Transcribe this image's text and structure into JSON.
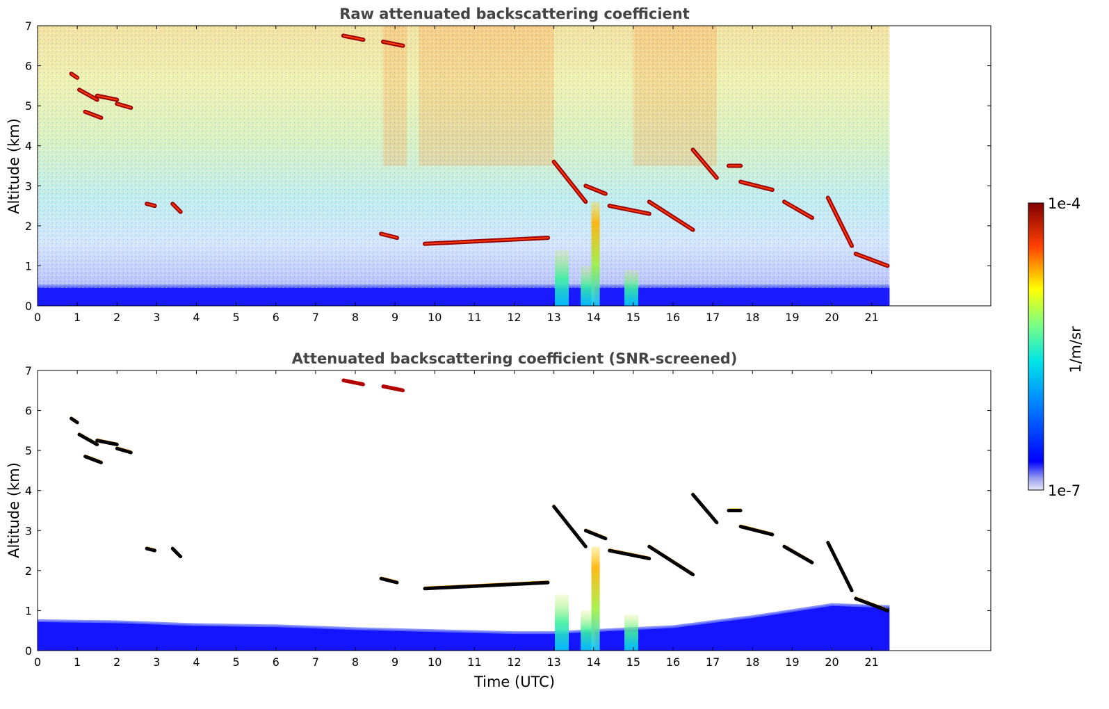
{
  "chart_data": [
    {
      "type": "heatmap",
      "title": "Raw attenuated backscattering coefficient",
      "xlabel": "",
      "ylabel": "Altitude (km)",
      "xlim": [
        0,
        24
      ],
      "ylim": [
        0,
        7
      ],
      "x_ticks": [
        0,
        1,
        2,
        3,
        4,
        5,
        6,
        7,
        8,
        9,
        10,
        11,
        12,
        13,
        14,
        15,
        16,
        17,
        18,
        19,
        20,
        21
      ],
      "y_ticks": [
        0,
        1,
        2,
        3,
        4,
        5,
        6,
        7
      ],
      "data_extent_x": [
        0,
        21.45
      ],
      "colormap": "jet",
      "color_scale": "log",
      "grid": false,
      "cloud_layers": [
        {
          "x": [
            0.85,
            1.0
          ],
          "y": [
            5.8,
            5.7
          ]
        },
        {
          "x": [
            1.05,
            1.5
          ],
          "y": [
            5.4,
            5.15
          ]
        },
        {
          "x": [
            1.2,
            1.6
          ],
          "y": [
            4.85,
            4.7
          ]
        },
        {
          "x": [
            1.5,
            2.0
          ],
          "y": [
            5.25,
            5.15
          ]
        },
        {
          "x": [
            2.0,
            2.35
          ],
          "y": [
            5.05,
            4.95
          ]
        },
        {
          "x": [
            2.75,
            2.95
          ],
          "y": [
            2.55,
            2.5
          ]
        },
        {
          "x": [
            3.4,
            3.6
          ],
          "y": [
            2.55,
            2.35
          ]
        },
        {
          "x": [
            7.7,
            8.2
          ],
          "y": [
            6.75,
            6.65
          ]
        },
        {
          "x": [
            8.7,
            9.2
          ],
          "y": [
            6.6,
            6.5
          ]
        },
        {
          "x": [
            8.65,
            9.05
          ],
          "y": [
            1.8,
            1.7
          ]
        },
        {
          "x": [
            9.75,
            12.85
          ],
          "y": [
            1.55,
            1.7
          ]
        },
        {
          "x": [
            13.0,
            13.8
          ],
          "y": [
            3.6,
            2.6
          ]
        },
        {
          "x": [
            13.8,
            14.3
          ],
          "y": [
            3.0,
            2.8
          ]
        },
        {
          "x": [
            14.4,
            15.4
          ],
          "y": [
            2.5,
            2.3
          ]
        },
        {
          "x": [
            15.4,
            16.5
          ],
          "y": [
            2.6,
            1.9
          ]
        },
        {
          "x": [
            16.5,
            17.1
          ],
          "y": [
            3.9,
            3.2
          ]
        },
        {
          "x": [
            17.4,
            17.7
          ],
          "y": [
            3.5,
            3.5
          ]
        },
        {
          "x": [
            17.7,
            18.5
          ],
          "y": [
            3.1,
            2.9
          ]
        },
        {
          "x": [
            18.8,
            19.5
          ],
          "y": [
            2.6,
            2.2
          ]
        },
        {
          "x": [
            19.9,
            20.5
          ],
          "y": [
            2.7,
            1.5
          ]
        },
        {
          "x": [
            20.6,
            21.4
          ],
          "y": [
            1.3,
            1.0
          ]
        }
      ],
      "aerosol_plumes": [
        {
          "x": 13.2,
          "top": 1.4
        },
        {
          "x": 13.85,
          "top": 1.0
        },
        {
          "x": 14.05,
          "top": 2.6
        },
        {
          "x": 14.95,
          "top": 0.9
        }
      ]
    },
    {
      "type": "heatmap",
      "title": "Attenuated backscattering coefficient (SNR-screened)",
      "xlabel": "Time (UTC)",
      "ylabel": "Altitude (km)",
      "xlim": [
        0,
        24
      ],
      "ylim": [
        0,
        7
      ],
      "x_ticks": [
        0,
        1,
        2,
        3,
        4,
        5,
        6,
        7,
        8,
        9,
        10,
        11,
        12,
        13,
        14,
        15,
        16,
        17,
        18,
        19,
        20,
        21
      ],
      "y_ticks": [
        0,
        1,
        2,
        3,
        4,
        5,
        6,
        7
      ],
      "data_extent_x": [
        0,
        21.45
      ],
      "colormap": "jet",
      "color_scale": "log",
      "grid": false,
      "boundary_layer_top": [
        {
          "x": 0,
          "y": 0.75
        },
        {
          "x": 2,
          "y": 0.72
        },
        {
          "x": 4,
          "y": 0.65
        },
        {
          "x": 6,
          "y": 0.62
        },
        {
          "x": 8,
          "y": 0.55
        },
        {
          "x": 10,
          "y": 0.5
        },
        {
          "x": 12,
          "y": 0.45
        },
        {
          "x": 13,
          "y": 0.45
        },
        {
          "x": 16,
          "y": 0.6
        },
        {
          "x": 18,
          "y": 0.85
        },
        {
          "x": 20,
          "y": 1.15
        },
        {
          "x": 21.45,
          "y": 1.1
        }
      ]
    }
  ],
  "colorbar": {
    "label": "1/m/sr",
    "max_label": "1e-4",
    "min_label": "1e-7"
  },
  "colors": {
    "min": "#0000ff",
    "mid": "#00ff80",
    "max": "#7f0000",
    "axis": "#000000",
    "title": "#444444"
  }
}
